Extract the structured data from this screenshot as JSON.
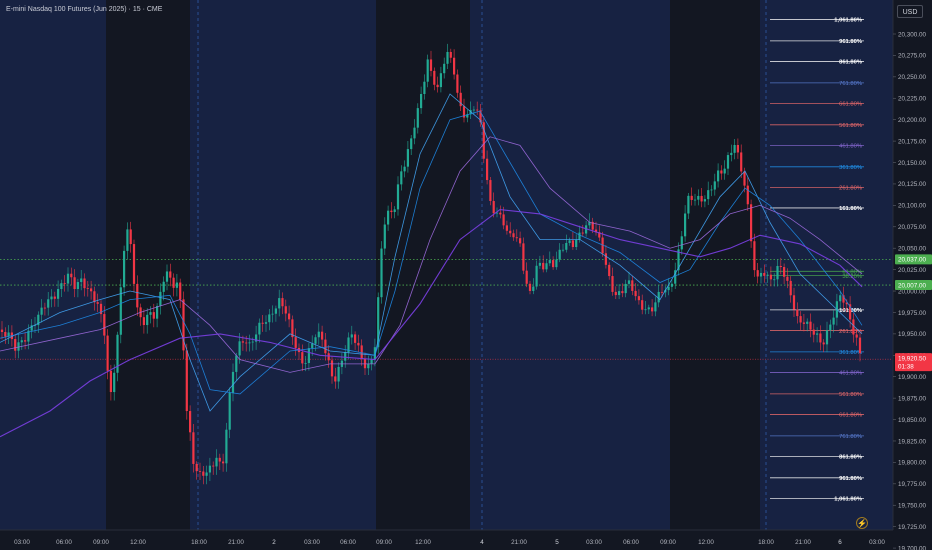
{
  "header": {
    "symbol_title": "E-mini Nasdaq 100 Futures (Jun 2025) · 15 · CME",
    "currency": "USD"
  },
  "colors": {
    "background": "#131722",
    "session_band": "#172242",
    "up_candle": "#22ab94",
    "down_candle": "#f23645",
    "ma_fast": "#42a5f5",
    "ma_mid": "#1e88e5",
    "ma_slow": "#7b3fe4",
    "ma_slower": "#9c6ade",
    "level_green": "#4caf50",
    "price_line": "#f23645"
  },
  "icons": {
    "alert": "lightning-icon"
  },
  "chart_data": {
    "type": "candlestick",
    "title": "E-mini Nasdaq 100 Futures (Jun 2025) · 15 · CME",
    "ylabel": "USD",
    "ylim": [
      19695,
      20325
    ],
    "grid": false,
    "y_ticks": [
      20300,
      20275,
      20250,
      20225,
      20200,
      20175,
      20150,
      20125,
      20100,
      20075,
      20050,
      20025,
      20000,
      19975,
      19950,
      19925,
      19900,
      19875,
      19850,
      19825,
      19800,
      19775,
      19750,
      19725,
      19700
    ],
    "x_ticks": [
      "03:00",
      "06:00",
      "09:00",
      "12:00",
      "18:00",
      "21:00",
      "2",
      "03:00",
      "06:00",
      "09:00",
      "12:00",
      "4",
      "21:00",
      "5",
      "03:00",
      "06:00",
      "09:00",
      "12:00",
      "18:00",
      "21:00",
      "6",
      "03:00"
    ],
    "price_path": [
      [
        0,
        19955
      ],
      [
        8,
        19945
      ],
      [
        15,
        19930
      ],
      [
        22,
        19945
      ],
      [
        30,
        19960
      ],
      [
        38,
        19965
      ],
      [
        45,
        19980
      ],
      [
        52,
        19995
      ],
      [
        60,
        20010
      ],
      [
        68,
        20015
      ],
      [
        75,
        20000
      ],
      [
        82,
        20015
      ],
      [
        90,
        20005
      ],
      [
        97,
        19985
      ],
      [
        104,
        19950
      ],
      [
        110,
        19870
      ],
      [
        116,
        19930
      ],
      [
        121,
        20010
      ],
      [
        126,
        20080
      ],
      [
        131,
        20045
      ],
      [
        136,
        19980
      ],
      [
        142,
        19960
      ],
      [
        148,
        19980
      ],
      [
        154,
        19975
      ],
      [
        160,
        19990
      ],
      [
        166,
        20020
      ],
      [
        172,
        20005
      ],
      [
        177,
        20015
      ],
      [
        182,
        19980
      ],
      [
        186,
        19870
      ],
      [
        190,
        19830
      ],
      [
        194,
        19790
      ],
      [
        199,
        19780
      ],
      [
        205,
        19790
      ],
      [
        211,
        19800
      ],
      [
        217,
        19810
      ],
      [
        222,
        19785
      ],
      [
        227,
        19840
      ],
      [
        232,
        19900
      ],
      [
        238,
        19940
      ],
      [
        244,
        19950
      ],
      [
        250,
        19935
      ],
      [
        256,
        19945
      ],
      [
        262,
        19960
      ],
      [
        268,
        19970
      ],
      [
        274,
        19985
      ],
      [
        280,
        19990
      ],
      [
        286,
        19970
      ],
      [
        292,
        19945
      ],
      [
        298,
        19930
      ],
      [
        304,
        19920
      ],
      [
        310,
        19935
      ],
      [
        316,
        19945
      ],
      [
        322,
        19940
      ],
      [
        328,
        19920
      ],
      [
        334,
        19900
      ],
      [
        340,
        19915
      ],
      [
        346,
        19930
      ],
      [
        352,
        19945
      ],
      [
        358,
        19935
      ],
      [
        364,
        19920
      ],
      [
        370,
        19915
      ],
      [
        376,
        19940
      ],
      [
        379,
        20000
      ],
      [
        383,
        20070
      ],
      [
        388,
        20090
      ],
      [
        394,
        20100
      ],
      [
        400,
        20140
      ],
      [
        406,
        20150
      ],
      [
        412,
        20175
      ],
      [
        418,
        20210
      ],
      [
        423,
        20245
      ],
      [
        428,
        20275
      ],
      [
        433,
        20250
      ],
      [
        438,
        20230
      ],
      [
        443,
        20260
      ],
      [
        448,
        20275
      ],
      [
        453,
        20270
      ],
      [
        458,
        20230
      ],
      [
        463,
        20210
      ],
      [
        468,
        20200
      ],
      [
        474,
        20210
      ],
      [
        480,
        20200
      ],
      [
        485,
        20150
      ],
      [
        490,
        20110
      ],
      [
        496,
        20090
      ],
      [
        502,
        20080
      ],
      [
        508,
        20060
      ],
      [
        514,
        20070
      ],
      [
        520,
        20060
      ],
      [
        526,
        20010
      ],
      [
        531,
        19990
      ],
      [
        537,
        20025
      ],
      [
        543,
        20030
      ],
      [
        549,
        20040
      ],
      [
        555,
        20035
      ],
      [
        561,
        20045
      ],
      [
        567,
        20050
      ],
      [
        573,
        20055
      ],
      [
        579,
        20070
      ],
      [
        585,
        20080
      ],
      [
        591,
        20075
      ],
      [
        597,
        20060
      ],
      [
        603,
        20045
      ],
      [
        609,
        20020
      ],
      [
        615,
        20000
      ],
      [
        621,
        19995
      ],
      [
        627,
        20005
      ],
      [
        633,
        20000
      ],
      [
        639,
        19990
      ],
      [
        645,
        19985
      ],
      [
        651,
        19975
      ],
      [
        657,
        19985
      ],
      [
        663,
        20000
      ],
      [
        669,
        20005
      ],
      [
        675,
        20030
      ],
      [
        681,
        20060
      ],
      [
        687,
        20100
      ],
      [
        693,
        20105
      ],
      [
        699,
        20110
      ],
      [
        705,
        20115
      ],
      [
        711,
        20120
      ],
      [
        717,
        20130
      ],
      [
        723,
        20135
      ],
      [
        729,
        20160
      ],
      [
        735,
        20180
      ],
      [
        740,
        20150
      ],
      [
        745,
        20120
      ],
      [
        749,
        20080
      ],
      [
        753,
        20030
      ],
      [
        757,
        20010
      ],
      [
        762,
        20030
      ],
      [
        768,
        20020
      ],
      [
        774,
        20015
      ],
      [
        780,
        20025
      ],
      [
        786,
        20010
      ],
      [
        792,
        19995
      ],
      [
        798,
        19970
      ],
      [
        804,
        19965
      ],
      [
        810,
        19950
      ],
      [
        816,
        19945
      ],
      [
        822,
        19940
      ],
      [
        828,
        19960
      ],
      [
        834,
        19975
      ],
      [
        840,
        19990
      ],
      [
        846,
        19980
      ],
      [
        852,
        19960
      ],
      [
        858,
        19945
      ],
      [
        862,
        19920
      ]
    ],
    "moving_averages": [
      {
        "path": [
          [
            0,
            19940
          ],
          [
            60,
            19975
          ],
          [
            100,
            19990
          ],
          [
            130,
            20000
          ],
          [
            170,
            19990
          ],
          [
            190,
            19920
          ],
          [
            210,
            19860
          ],
          [
            240,
            19900
          ],
          [
            290,
            19950
          ],
          [
            330,
            19930
          ],
          [
            375,
            19925
          ],
          [
            395,
            20040
          ],
          [
            420,
            20160
          ],
          [
            450,
            20230
          ],
          [
            480,
            20200
          ],
          [
            510,
            20110
          ],
          [
            540,
            20060
          ],
          [
            580,
            20060
          ],
          [
            620,
            20030
          ],
          [
            660,
            19990
          ],
          [
            690,
            20050
          ],
          [
            720,
            20110
          ],
          [
            745,
            20140
          ],
          [
            770,
            20080
          ],
          [
            800,
            20020
          ],
          [
            840,
            19975
          ],
          [
            862,
            19950
          ]
        ]
      },
      {
        "path": [
          [
            0,
            19945
          ],
          [
            60,
            19960
          ],
          [
            100,
            19975
          ],
          [
            130,
            19990
          ],
          [
            170,
            19995
          ],
          [
            190,
            19950
          ],
          [
            210,
            19885
          ],
          [
            240,
            19880
          ],
          [
            290,
            19930
          ],
          [
            330,
            19935
          ],
          [
            375,
            19925
          ],
          [
            395,
            20000
          ],
          [
            420,
            20120
          ],
          [
            450,
            20200
          ],
          [
            480,
            20210
          ],
          [
            510,
            20150
          ],
          [
            540,
            20090
          ],
          [
            580,
            20065
          ],
          [
            620,
            20045
          ],
          [
            660,
            20010
          ],
          [
            690,
            20025
          ],
          [
            720,
            20080
          ],
          [
            745,
            20120
          ],
          [
            770,
            20100
          ],
          [
            800,
            20060
          ],
          [
            840,
            20000
          ],
          [
            862,
            19960
          ]
        ]
      },
      {
        "path": [
          [
            0,
            19930
          ],
          [
            60,
            19945
          ],
          [
            100,
            19955
          ],
          [
            140,
            19975
          ],
          [
            180,
            19990
          ],
          [
            210,
            19960
          ],
          [
            240,
            19920
          ],
          [
            290,
            19905
          ],
          [
            330,
            19915
          ],
          [
            375,
            19915
          ],
          [
            400,
            19960
          ],
          [
            430,
            20060
          ],
          [
            460,
            20140
          ],
          [
            490,
            20180
          ],
          [
            520,
            20170
          ],
          [
            550,
            20120
          ],
          [
            590,
            20080
          ],
          [
            630,
            20070
          ],
          [
            670,
            20050
          ],
          [
            700,
            20060
          ],
          [
            730,
            20090
          ],
          [
            760,
            20100
          ],
          [
            790,
            20085
          ],
          [
            820,
            20060
          ],
          [
            862,
            20020
          ]
        ]
      },
      {
        "path": [
          [
            0,
            19830
          ],
          [
            50,
            19860
          ],
          [
            90,
            19895
          ],
          [
            130,
            19920
          ],
          [
            180,
            19945
          ],
          [
            220,
            19950
          ],
          [
            270,
            19940
          ],
          [
            320,
            19925
          ],
          [
            375,
            19920
          ],
          [
            420,
            19985
          ],
          [
            460,
            20060
          ],
          [
            500,
            20095
          ],
          [
            540,
            20090
          ],
          [
            580,
            20075
          ],
          [
            620,
            20060
          ],
          [
            660,
            20050
          ],
          [
            700,
            20040
          ],
          [
            730,
            20050
          ],
          [
            760,
            20065
          ],
          [
            800,
            20055
          ],
          [
            840,
            20030
          ],
          [
            862,
            20005
          ]
        ]
      }
    ],
    "fib_levels": [
      {
        "label": "1,061.80%",
        "value": 20317,
        "color": "#ffffff"
      },
      {
        "label": "961.80%",
        "value": 20292,
        "color": "#ffffff"
      },
      {
        "label": "861.80%",
        "value": 20268,
        "color": "#ffffff"
      },
      {
        "label": "761.80%",
        "value": 20243,
        "color": "#5b7fd6"
      },
      {
        "label": "661.80%",
        "value": 20219,
        "color": "#f26d6d"
      },
      {
        "label": "561.80%",
        "value": 20194,
        "color": "#f26d6d"
      },
      {
        "label": "461.80%",
        "value": 20170,
        "color": "#8a6ad6"
      },
      {
        "label": "361.80%",
        "value": 20145,
        "color": "#2196f3"
      },
      {
        "label": "261.80%",
        "value": 20121,
        "color": "#f26d6d"
      },
      {
        "label": "161.80%",
        "value": 20097,
        "color": "#ffffff"
      },
      {
        "label": "61.80%",
        "value": 20023,
        "color": "#4caf50"
      },
      {
        "label": "38.20%",
        "value": 20018,
        "color": "#4caf50"
      },
      {
        "label": "161.80%",
        "value": 19978,
        "color": "#ffffff"
      },
      {
        "label": "261.80%",
        "value": 19954,
        "color": "#f26d6d"
      },
      {
        "label": "361.80%",
        "value": 19929,
        "color": "#2196f3"
      },
      {
        "label": "461.80%",
        "value": 19905,
        "color": "#8a6ad6"
      },
      {
        "label": "561.80%",
        "value": 19880,
        "color": "#f26d6d"
      },
      {
        "label": "661.80%",
        "value": 19856,
        "color": "#f26d6d"
      },
      {
        "label": "761.80%",
        "value": 19831,
        "color": "#5b7fd6"
      },
      {
        "label": "861.80%",
        "value": 19807,
        "color": "#ffffff"
      },
      {
        "label": "961.80%",
        "value": 19782,
        "color": "#ffffff"
      },
      {
        "label": "1,061.80%",
        "value": 19758,
        "color": "#ffffff"
      }
    ],
    "horizontal_levels": [
      {
        "value": 20037,
        "label": "20,037.00",
        "color": "#4caf50"
      },
      {
        "value": 20007,
        "label": "20,007.00",
        "color": "#4caf50"
      }
    ],
    "current_price": {
      "value": 19920.5,
      "label": "19,920.50",
      "countdown": "01:38"
    }
  }
}
